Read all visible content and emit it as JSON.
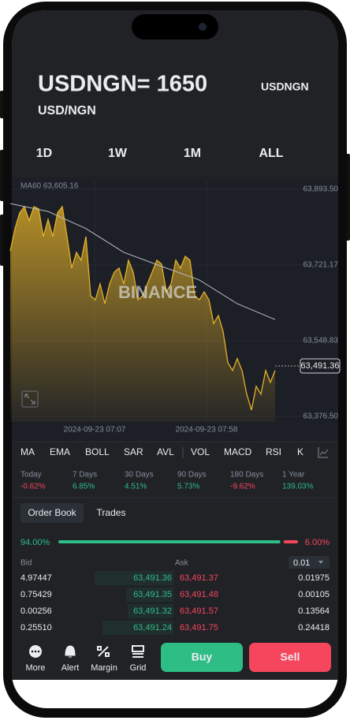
{
  "header": {
    "title": "USDNGN= 1650",
    "symbol": "USDNGN",
    "pair": "USD/NGN"
  },
  "ranges": [
    "1D",
    "1W",
    "1M",
    "ALL"
  ],
  "chart": {
    "type": "area",
    "ma_label": "MA60 63,605.16",
    "watermark": "BINANCE",
    "values": [
      63753,
      63804,
      63840,
      63854,
      63822,
      63854,
      63849,
      63786,
      63825,
      63786,
      63840,
      63854,
      63786,
      63714,
      63750,
      63732,
      63786,
      63651,
      63642,
      63678,
      63633,
      63678,
      63705,
      63714,
      63678,
      63732,
      63705,
      63642,
      63651,
      63678,
      63705,
      63732,
      63723,
      63660,
      63678,
      63732,
      63714,
      63741,
      63732,
      63651,
      63642,
      63660,
      63642,
      63588,
      63606,
      63570,
      63499,
      63481,
      63508,
      63481,
      63427,
      63391,
      63445,
      63427,
      63481,
      63454,
      63481
    ],
    "ma_values": [
      63861,
      63843,
      63804,
      63750,
      63718,
      63687,
      63633,
      63597
    ],
    "color": "#e3b128",
    "ma_color": "#b9bcc4",
    "ylim": [
      63376.5,
      63893.5
    ],
    "yticks": [
      {
        "value": 63893.5,
        "label": "63,893.50"
      },
      {
        "value": 63721.17,
        "label": "63,721.17"
      },
      {
        "value": 63548.83,
        "label": "63,548.83"
      },
      {
        "value": 63376.5,
        "label": "63,376.50"
      }
    ],
    "last": {
      "value": 63491.36,
      "label": "63,491.36"
    },
    "time_labels": [
      "2024-09-23 07:07",
      "2024-09-23 07:58"
    ]
  },
  "indicators": [
    "MA",
    "EMA",
    "BOLL",
    "SAR",
    "AVL",
    "VOL",
    "MACD",
    "RSI",
    "K"
  ],
  "performance": [
    {
      "label": "Today",
      "value": "-0.62%"
    },
    {
      "label": "7 Days",
      "value": "6.85%"
    },
    {
      "label": "30 Days",
      "value": "4.51%"
    },
    {
      "label": "90 Days",
      "value": "5.73%"
    },
    {
      "label": "180 Days",
      "value": "-9.62%"
    },
    {
      "label": "1 Year",
      "value": "139.03%"
    }
  ],
  "tabs": [
    "Order Book",
    "Trades"
  ],
  "ratio": {
    "buy": {
      "value": 94,
      "label": "94.00%"
    },
    "sell": {
      "value": 6,
      "label": "6.00%"
    }
  },
  "book": {
    "bid_label": "Bid",
    "ask_label": "Ask",
    "step": "0.01",
    "rows": [
      [
        "4.97447",
        "63,491.36",
        "63,491.37",
        "0.01975"
      ],
      [
        "0.75429",
        "63,491.35",
        "63,491.48",
        "0.00105"
      ],
      [
        "0.00256",
        "63,491.32",
        "63,491.57",
        "0.13564"
      ],
      [
        "0.25510",
        "63,491.24",
        "63,491.75",
        "0.24418"
      ]
    ]
  },
  "nav": [
    "More",
    "Alert",
    "Margin",
    "Grid"
  ],
  "buttons": {
    "buy": "Buy",
    "sell": "Sell"
  }
}
